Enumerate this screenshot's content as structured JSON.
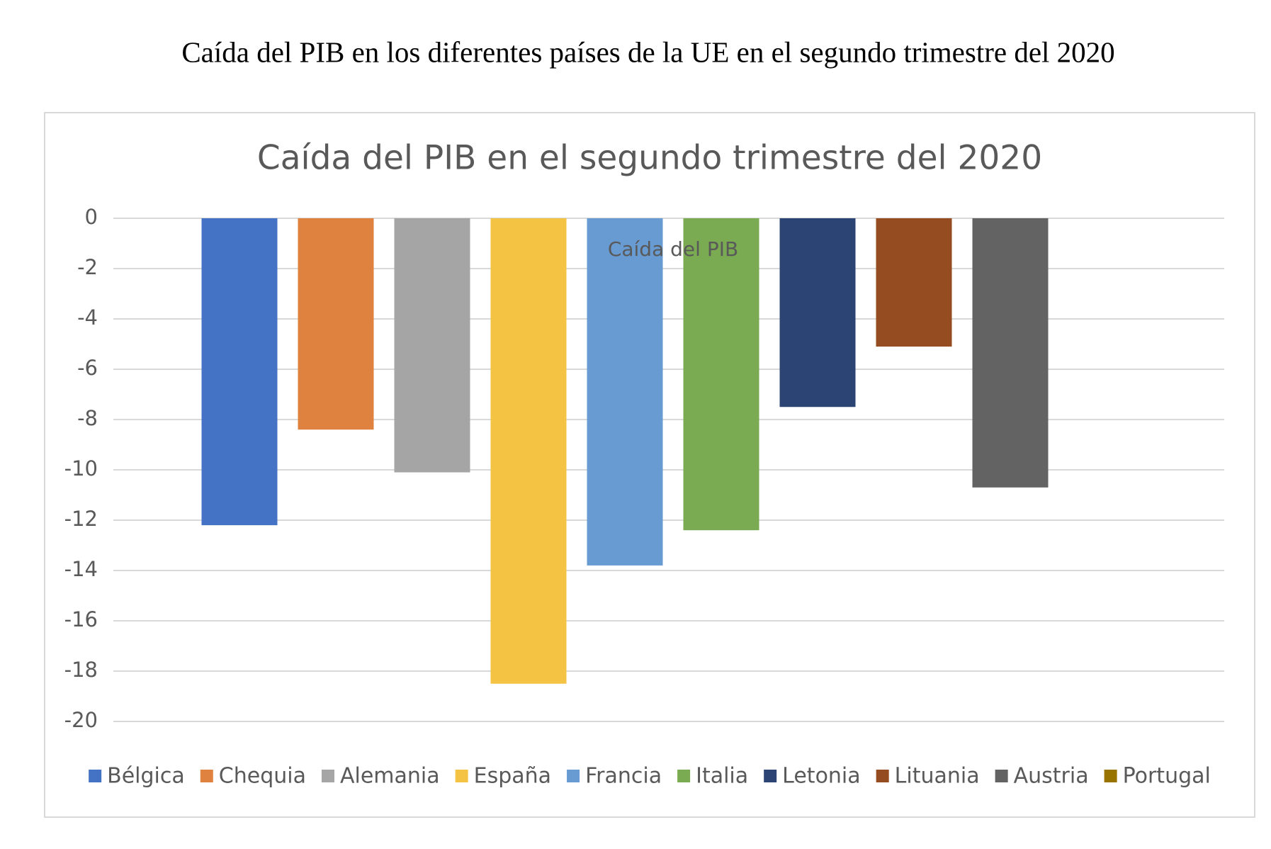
{
  "page_title": "Caída del PIB en los diferentes países de la UE en el segundo trimestre del 2020",
  "chart_data": {
    "type": "bar",
    "title": "Caída del PIB en el segundo trimestre del 2020",
    "categories": [
      "Caída del PIB"
    ],
    "series": [
      {
        "name": "Bélgica",
        "color": "#4472c4",
        "values": [
          -12.2
        ]
      },
      {
        "name": "Chequia",
        "color": "#e0823f",
        "values": [
          -8.4
        ]
      },
      {
        "name": "Alemania",
        "color": "#a5a5a5",
        "values": [
          -10.1
        ]
      },
      {
        "name": "España",
        "color": "#f4c343",
        "values": [
          -18.5
        ]
      },
      {
        "name": "Francia",
        "color": "#689bd2",
        "values": [
          -13.8
        ]
      },
      {
        "name": "Italia",
        "color": "#7aab52",
        "values": [
          -12.4
        ]
      },
      {
        "name": "Letonia",
        "color": "#2c4474",
        "values": [
          -7.5
        ]
      },
      {
        "name": "Lituania",
        "color": "#954c20",
        "values": [
          -5.1
        ]
      },
      {
        "name": "Austria",
        "color": "#636363",
        "values": [
          -10.7
        ]
      },
      {
        "name": "Portugal",
        "color": "#997300",
        "values": [
          null
        ]
      }
    ],
    "ylim": [
      -20,
      0
    ],
    "yticks": [
      0,
      -2,
      -4,
      -6,
      -8,
      -10,
      -12,
      -14,
      -16,
      -18,
      -20
    ],
    "grid": true,
    "legend": "bottom"
  }
}
